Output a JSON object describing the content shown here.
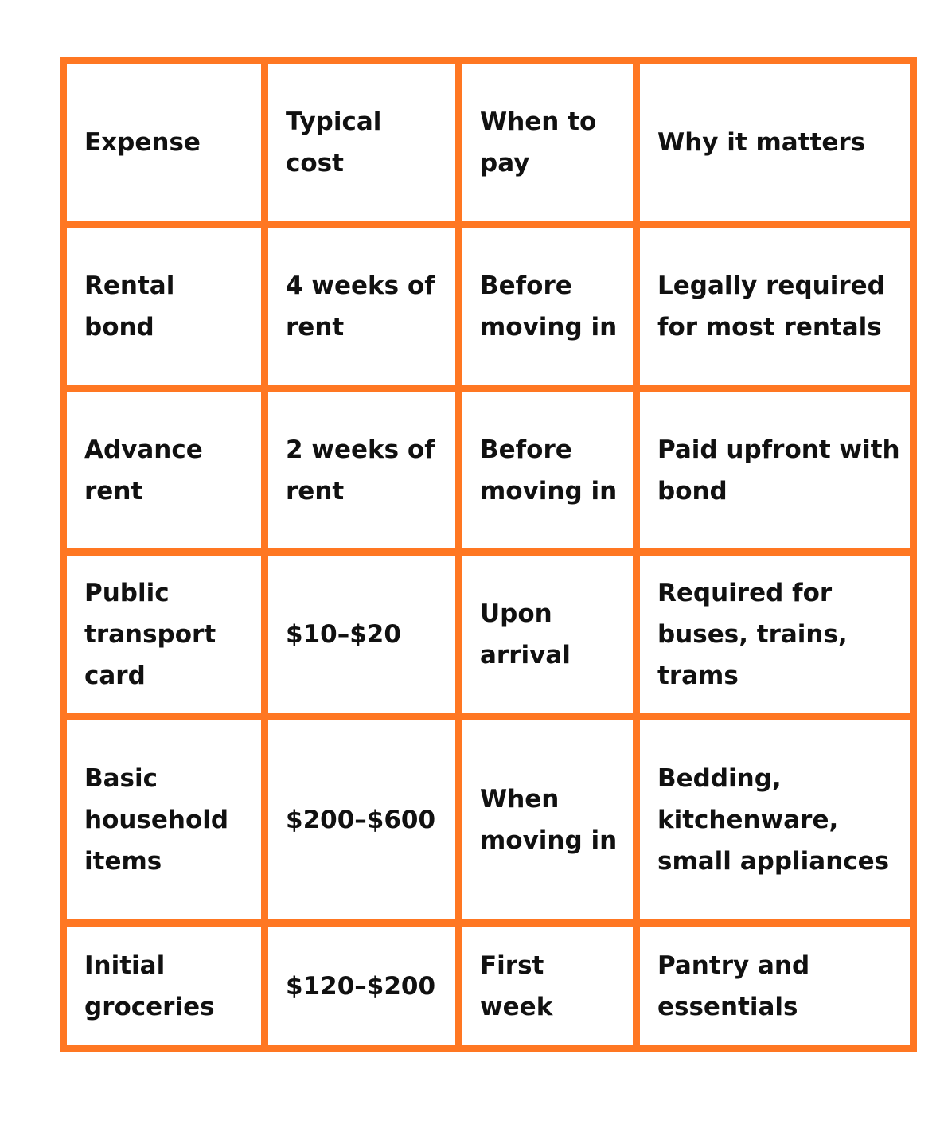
{
  "colors": {
    "border": "#FF7722",
    "text": "#111111",
    "background": "#FFFFFF"
  },
  "table": {
    "headers": [
      "Expense",
      "Typical cost",
      "When to pay",
      "Why it matters"
    ],
    "rows": [
      [
        "Rental bond",
        "4 weeks of rent",
        "Before moving in",
        "Legally required for most rentals"
      ],
      [
        "Advance rent",
        "2 weeks of rent",
        "Before moving in",
        "Paid upfront with bond"
      ],
      [
        "Public transport card",
        "$10–$20",
        "Upon arrival",
        "Required for buses, trains, trams"
      ],
      [
        "Basic household items",
        "$200–$600",
        "When moving in",
        "Bedding, kitchenware, small appliances"
      ],
      [
        "Initial groceries",
        "$120–$200",
        "First week",
        "Pantry and essentials"
      ]
    ]
  }
}
